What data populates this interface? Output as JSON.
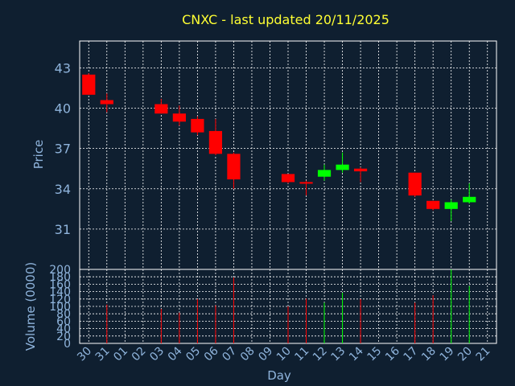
{
  "chart_data": {
    "type": "candlestick",
    "title": "CNXC - last updated 20/11/2025",
    "xlabel": "Day",
    "ylabel_price": "Price",
    "ylabel_volume": "Volume (0000)",
    "x_ticks": [
      "30",
      "31",
      "01",
      "02",
      "03",
      "04",
      "05",
      "06",
      "07",
      "08",
      "09",
      "10",
      "11",
      "12",
      "13",
      "14",
      "15",
      "16",
      "17",
      "18",
      "19",
      "20",
      "21"
    ],
    "price_ticks": [
      31,
      34,
      37,
      40,
      43
    ],
    "price_range": [
      28.0,
      45.0
    ],
    "volume_ticks": [
      0,
      20,
      40,
      60,
      80,
      100,
      120,
      140,
      160,
      180,
      200
    ],
    "volume_range": [
      0,
      200
    ],
    "grid": true,
    "up_color": "#00ff00",
    "down_color": "#ff0000",
    "candles": [
      {
        "day": "30",
        "open": 42.5,
        "high": 42.6,
        "low": 41.0,
        "close": 41.0,
        "volume": 0
      },
      {
        "day": "31",
        "open": 40.6,
        "high": 41.1,
        "low": 39.7,
        "close": 40.3,
        "volume": 105
      },
      {
        "day": "03",
        "open": 40.3,
        "high": 40.7,
        "low": 39.6,
        "close": 39.6,
        "volume": 93
      },
      {
        "day": "04",
        "open": 39.6,
        "high": 40.2,
        "low": 38.7,
        "close": 39.0,
        "volume": 83
      },
      {
        "day": "05",
        "open": 39.2,
        "high": 39.4,
        "low": 38.0,
        "close": 38.2,
        "volume": 120
      },
      {
        "day": "06",
        "open": 38.3,
        "high": 39.2,
        "low": 36.5,
        "close": 36.6,
        "volume": 103
      },
      {
        "day": "07",
        "open": 36.6,
        "high": 36.7,
        "low": 34.0,
        "close": 34.7,
        "volume": 178
      },
      {
        "day": "10",
        "open": 35.1,
        "high": 35.1,
        "low": 34.4,
        "close": 34.5,
        "volume": 100
      },
      {
        "day": "11",
        "open": 34.5,
        "high": 34.6,
        "low": 33.5,
        "close": 34.4,
        "volume": 121
      },
      {
        "day": "12",
        "open": 34.9,
        "high": 35.8,
        "low": 34.6,
        "close": 35.4,
        "volume": 110
      },
      {
        "day": "13",
        "open": 35.4,
        "high": 36.7,
        "low": 35.2,
        "close": 35.8,
        "volume": 137
      },
      {
        "day": "14",
        "open": 35.5,
        "high": 35.6,
        "low": 34.5,
        "close": 35.3,
        "volume": 120
      },
      {
        "day": "17",
        "open": 35.2,
        "high": 35.2,
        "low": 33.4,
        "close": 33.5,
        "volume": 110
      },
      {
        "day": "18",
        "open": 33.1,
        "high": 33.1,
        "low": 32.4,
        "close": 32.5,
        "volume": 130
      },
      {
        "day": "19",
        "open": 32.5,
        "high": 33.2,
        "low": 31.6,
        "close": 33.0,
        "volume": 200
      },
      {
        "day": "20",
        "open": 33.0,
        "high": 34.4,
        "low": 32.9,
        "close": 33.4,
        "volume": 155
      }
    ]
  }
}
